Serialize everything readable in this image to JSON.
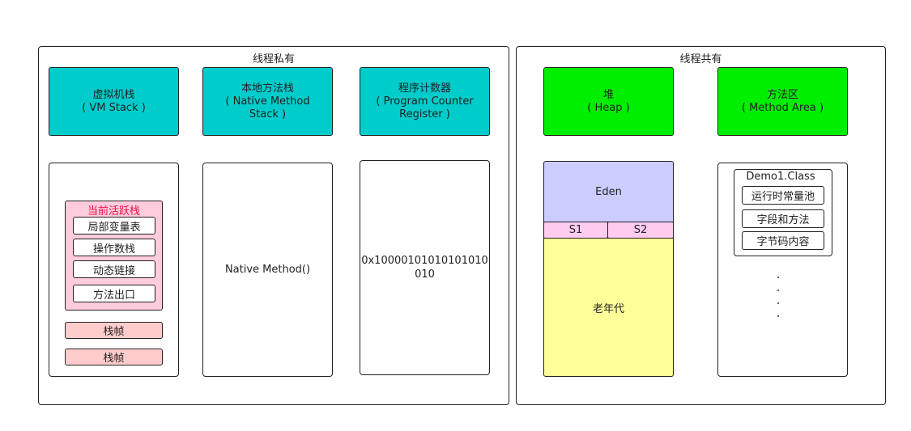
{
  "private": {
    "title": "线程私有",
    "vm_stack": {
      "line1": "虚拟机栈",
      "line2": "( VM Stack )"
    },
    "native_stack": {
      "line1": "本地方法栈",
      "line2": "( Native Method",
      "line3": "Stack )"
    },
    "pc": {
      "line1": "程序计数器",
      "line2": "( Program Counter",
      "line3": "Register )"
    },
    "active_frame": {
      "title": "当前活跃栈",
      "items": [
        "局部变量表",
        "操作数栈",
        "动态链接",
        "方法出口"
      ]
    },
    "frames": [
      "栈帧",
      "栈帧"
    ],
    "native_method": "Native Method()",
    "pc_value_line1": "0x10000101010101010",
    "pc_value_line2": "010"
  },
  "shared": {
    "title": "线程共有",
    "heap": {
      "line1": "堆",
      "line2": "( Heap )"
    },
    "method_area": {
      "line1": "方法区",
      "line2": "( Method Area )"
    },
    "eden": "Eden",
    "s1": "S1",
    "s2": "S2",
    "old_gen": "老年代",
    "class_box": {
      "title": "Demo1.Class",
      "items": [
        "运行时常量池",
        "字段和方法",
        "字节码内容"
      ]
    }
  }
}
